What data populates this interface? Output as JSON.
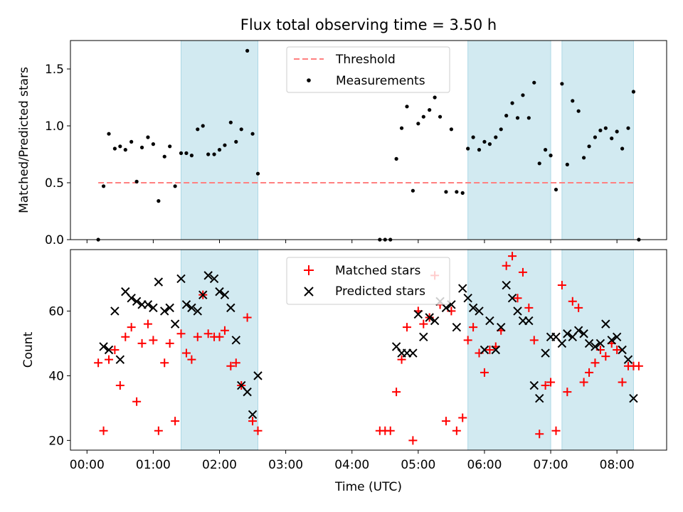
{
  "chart_data": {
    "type": "scatter",
    "title": "Flux total observing time = 3.50 h",
    "shaded_intervals_hours": [
      [
        1.42,
        2.58
      ],
      [
        5.75,
        7.0
      ],
      [
        7.17,
        8.25
      ]
    ],
    "shade_color": "#add8e6",
    "panels": [
      {
        "ylabel": "Matched/Predicted stars",
        "ylim": [
          0,
          1.75
        ],
        "yticks": [
          0.0,
          0.5,
          1.0,
          1.5
        ],
        "ytick_labels": [
          "0.0",
          "0.5",
          "1.0",
          "1.5"
        ],
        "legend_position": "top-center",
        "series": [
          {
            "name": "Threshold",
            "kind": "dashed-line",
            "color": "#ff8080",
            "x": [
              0.17,
              8.25
            ],
            "y": [
              0.5,
              0.5
            ]
          },
          {
            "name": "Measurements",
            "kind": "dot",
            "color": "#000000",
            "x": [
              0.17,
              0.25,
              0.33,
              0.42,
              0.5,
              0.58,
              0.67,
              0.75,
              0.83,
              0.92,
              1.0,
              1.08,
              1.17,
              1.25,
              1.33,
              1.42,
              1.5,
              1.58,
              1.67,
              1.75,
              1.83,
              1.92,
              2.0,
              2.08,
              2.17,
              2.25,
              2.33,
              2.42,
              2.5,
              2.58,
              4.42,
              4.5,
              4.58,
              4.67,
              4.75,
              4.83,
              4.92,
              5.0,
              5.08,
              5.17,
              5.25,
              5.33,
              5.42,
              5.5,
              5.58,
              5.67,
              5.75,
              5.83,
              5.92,
              6.0,
              6.08,
              6.17,
              6.25,
              6.33,
              6.42,
              6.5,
              6.58,
              6.67,
              6.75,
              6.83,
              6.92,
              7.0,
              7.08,
              7.17,
              7.25,
              7.33,
              7.42,
              7.5,
              7.58,
              7.67,
              7.75,
              7.83,
              7.92,
              8.0,
              8.08,
              8.17,
              8.25,
              8.33
            ],
            "y": [
              0.0,
              0.47,
              0.93,
              0.8,
              0.82,
              0.79,
              0.86,
              0.51,
              0.81,
              0.9,
              0.84,
              0.34,
              0.73,
              0.82,
              0.47,
              0.76,
              0.76,
              0.74,
              0.97,
              1.0,
              0.75,
              0.75,
              0.79,
              0.83,
              1.03,
              0.86,
              0.97,
              1.66,
              0.93,
              0.58,
              0.0,
              0.0,
              0.0,
              0.71,
              0.98,
              1.17,
              0.43,
              1.02,
              1.08,
              1.14,
              1.25,
              1.08,
              0.42,
              0.97,
              0.42,
              0.41,
              0.8,
              0.9,
              0.79,
              0.86,
              0.84,
              0.9,
              0.97,
              1.09,
              1.2,
              1.07,
              1.27,
              1.07,
              1.38,
              0.67,
              0.79,
              0.74,
              0.44,
              1.37,
              0.66,
              1.22,
              1.13,
              0.72,
              0.82,
              0.9,
              0.96,
              0.98,
              0.89,
              0.95,
              0.8,
              0.98,
              1.3,
              0.0
            ]
          }
        ]
      },
      {
        "ylabel": "Count",
        "ylim": [
          17,
          79
        ],
        "yticks": [
          20,
          40,
          60
        ],
        "ytick_labels": [
          "20",
          "40",
          "60"
        ],
        "xlabel": "Time (UTC)",
        "xlim": [
          -0.25,
          8.75
        ],
        "xticks": [
          0,
          1,
          2,
          3,
          4,
          5,
          6,
          7,
          8
        ],
        "xtick_labels": [
          "00:00",
          "01:00",
          "02:00",
          "03:00",
          "04:00",
          "05:00",
          "06:00",
          "07:00",
          "08:00"
        ],
        "legend_position": "top-center",
        "series": [
          {
            "name": "Matched stars",
            "kind": "plus",
            "color": "#ff0000",
            "x": [
              0.17,
              0.25,
              0.33,
              0.42,
              0.5,
              0.58,
              0.67,
              0.75,
              0.83,
              0.92,
              1.0,
              1.08,
              1.17,
              1.25,
              1.33,
              1.42,
              1.5,
              1.58,
              1.67,
              1.75,
              1.83,
              1.92,
              2.0,
              2.08,
              2.17,
              2.25,
              2.33,
              2.42,
              2.5,
              2.58,
              4.42,
              4.5,
              4.58,
              4.67,
              4.75,
              4.83,
              4.92,
              5.0,
              5.08,
              5.17,
              5.25,
              5.33,
              5.42,
              5.5,
              5.58,
              5.67,
              5.75,
              5.83,
              5.92,
              6.0,
              6.08,
              6.17,
              6.25,
              6.33,
              6.42,
              6.5,
              6.58,
              6.67,
              6.75,
              6.83,
              6.92,
              7.0,
              7.08,
              7.17,
              7.25,
              7.33,
              7.42,
              7.5,
              7.58,
              7.67,
              7.75,
              7.83,
              7.92,
              8.0,
              8.08,
              8.17,
              8.25,
              8.33
            ],
            "y": [
              44,
              23,
              45,
              48,
              37,
              52,
              55,
              32,
              50,
              56,
              51,
              23,
              44,
              50,
              26,
              53,
              47,
              45,
              52,
              65,
              53,
              52,
              52,
              54,
              43,
              44,
              37,
              58,
              26,
              23,
              23,
              23,
              23,
              35,
              45,
              55,
              20,
              60,
              56,
              58,
              71,
              62,
              26,
              60,
              23,
              27,
              51,
              55,
              47,
              41,
              48,
              49,
              54,
              74,
              77,
              64,
              72,
              61,
              51,
              22,
              37,
              38,
              23,
              68,
              35,
              63,
              61,
              38,
              41,
              44,
              48,
              46,
              50,
              48,
              38,
              43,
              43,
              43
            ]
          },
          {
            "name": "Predicted stars",
            "kind": "x",
            "color": "#000000",
            "x": [
              0.25,
              0.33,
              0.42,
              0.5,
              0.58,
              0.67,
              0.75,
              0.83,
              0.92,
              1.0,
              1.08,
              1.17,
              1.25,
              1.33,
              1.42,
              1.5,
              1.58,
              1.67,
              1.75,
              1.83,
              1.92,
              2.0,
              2.08,
              2.17,
              2.25,
              2.33,
              2.42,
              2.5,
              2.58,
              4.67,
              4.75,
              4.83,
              4.92,
              5.0,
              5.08,
              5.17,
              5.25,
              5.33,
              5.42,
              5.5,
              5.58,
              5.67,
              5.75,
              5.83,
              5.92,
              6.0,
              6.08,
              6.17,
              6.25,
              6.33,
              6.42,
              6.5,
              6.58,
              6.67,
              6.75,
              6.83,
              6.92,
              7.0,
              7.08,
              7.17,
              7.25,
              7.33,
              7.42,
              7.5,
              7.58,
              7.67,
              7.75,
              7.83,
              7.92,
              8.0,
              8.08,
              8.17,
              8.25
            ],
            "y": [
              49,
              48,
              60,
              45,
              66,
              64,
              63,
              62,
              62,
              61,
              69,
              60,
              61,
              56,
              70,
              62,
              61,
              60,
              65,
              71,
              70,
              66,
              65,
              61,
              51,
              37,
              35,
              28,
              40,
              49,
              47,
              47,
              47,
              59,
              52,
              58,
              57,
              63,
              61,
              62,
              55,
              67,
              64,
              61,
              60,
              48,
              57,
              48,
              55,
              68,
              64,
              60,
              57,
              57,
              37,
              33,
              47,
              52,
              52,
              50,
              53,
              52,
              54,
              53,
              50,
              49,
              50,
              56,
              51,
              52,
              48,
              45,
              33
            ]
          }
        ]
      }
    ]
  }
}
